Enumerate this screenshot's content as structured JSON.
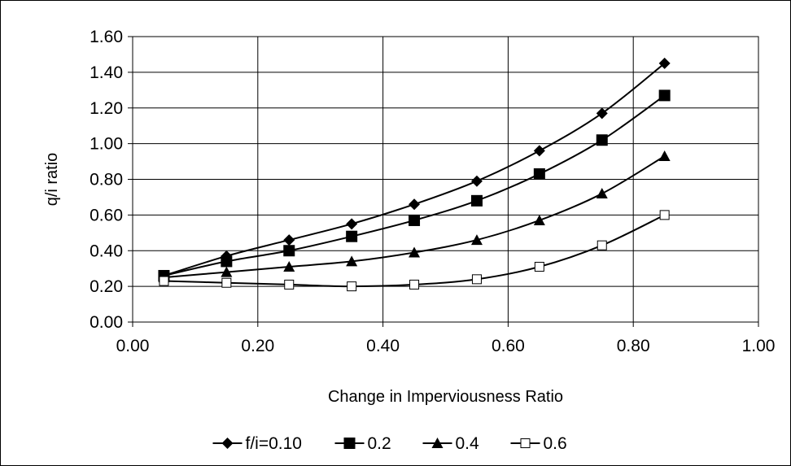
{
  "chart_data": {
    "type": "line",
    "xlabel": "Change in Imperviousness Ratio",
    "ylabel": "q/i ratio",
    "xlim": [
      0,
      1
    ],
    "ylim": [
      0,
      1.6
    ],
    "x_ticks": [
      "0.00",
      "0.20",
      "0.40",
      "0.60",
      "0.80",
      "1.00"
    ],
    "y_ticks": [
      "0.00",
      "0.20",
      "0.40",
      "0.60",
      "0.80",
      "1.00",
      "1.20",
      "1.40",
      "1.60"
    ],
    "grid": true,
    "legend_position": "bottom",
    "x": [
      0.05,
      0.15,
      0.25,
      0.35,
      0.45,
      0.55,
      0.65,
      0.75,
      0.85
    ],
    "series": [
      {
        "name": "f/i=0.10",
        "marker": "diamond",
        "color": "#000000",
        "values": [
          0.26,
          0.37,
          0.46,
          0.55,
          0.66,
          0.79,
          0.96,
          1.17,
          1.45
        ]
      },
      {
        "name": "0.2",
        "marker": "square-filled",
        "color": "#000000",
        "values": [
          0.26,
          0.34,
          0.4,
          0.48,
          0.57,
          0.68,
          0.83,
          1.02,
          1.27
        ]
      },
      {
        "name": "0.4",
        "marker": "triangle",
        "color": "#000000",
        "values": [
          0.25,
          0.28,
          0.31,
          0.34,
          0.39,
          0.46,
          0.57,
          0.72,
          0.93
        ]
      },
      {
        "name": "0.6",
        "marker": "square-open",
        "color": "#000000",
        "values": [
          0.23,
          0.22,
          0.21,
          0.2,
          0.21,
          0.24,
          0.31,
          0.43,
          0.6
        ]
      }
    ]
  }
}
